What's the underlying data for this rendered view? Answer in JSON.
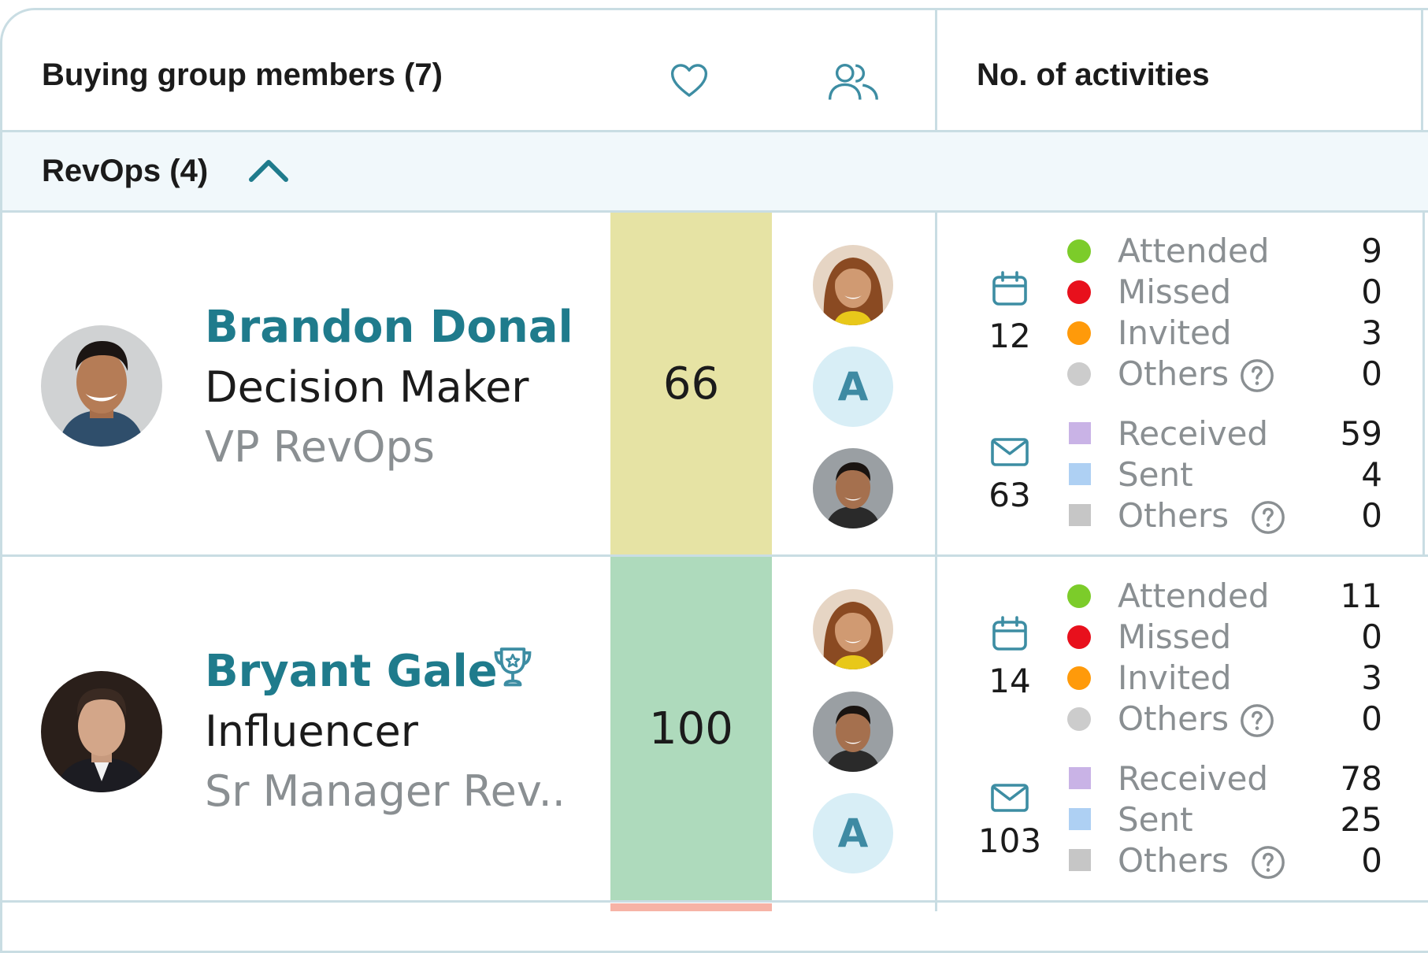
{
  "header": {
    "members_title": "Buying group members (7)",
    "activities_title": "No. of activities",
    "heart_icon": "heart-icon",
    "people_icon": "people-icon"
  },
  "group": {
    "label": "RevOps (4)",
    "chevron": "chevron-up-icon"
  },
  "colors": {
    "accent": "#1f7b8c",
    "score_66": "#e6e3a4",
    "score_100": "#aedabc",
    "attended": "#7ccc2a",
    "missed": "#e8101c",
    "invited": "#ff9a0a",
    "others": "#cccccc",
    "received": "#c9b3e6",
    "sent": "#aed0f3",
    "others_email": "#c6c6c6"
  },
  "members": [
    {
      "name": "Brandon Donal",
      "role": "Decision Maker",
      "title": "VP RevOps",
      "score": "66",
      "stakeholders": [
        "photo",
        "A",
        "photo"
      ],
      "meetings": {
        "total": "12",
        "rows": [
          {
            "label": "Attended",
            "value": "9"
          },
          {
            "label": "Missed",
            "value": "0"
          },
          {
            "label": "Invited",
            "value": "3"
          },
          {
            "label": "Others",
            "value": "0"
          }
        ]
      },
      "emails": {
        "total": "63",
        "rows": [
          {
            "label": "Received",
            "value": "59"
          },
          {
            "label": "Sent",
            "value": "4"
          },
          {
            "label": "Others",
            "value": "0"
          }
        ]
      }
    },
    {
      "name": "Bryant Gale",
      "badge": "trophy-icon",
      "role": "Influencer",
      "title": "Sr Manager Rev..",
      "score": "100",
      "stakeholders": [
        "photo",
        "photo",
        "A"
      ],
      "meetings": {
        "total": "14",
        "rows": [
          {
            "label": "Attended",
            "value": "11"
          },
          {
            "label": "Missed",
            "value": "0"
          },
          {
            "label": "Invited",
            "value": "3"
          },
          {
            "label": "Others",
            "value": "0"
          }
        ]
      },
      "emails": {
        "total": "103",
        "rows": [
          {
            "label": "Received",
            "value": "78"
          },
          {
            "label": "Sent",
            "value": "25"
          },
          {
            "label": "Others",
            "value": "0"
          }
        ]
      }
    }
  ]
}
